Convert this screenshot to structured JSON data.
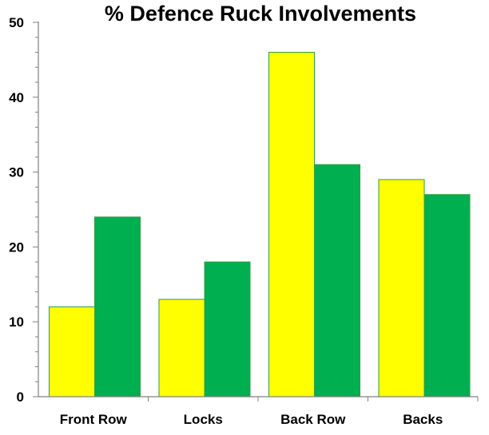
{
  "chart_data": {
    "type": "bar",
    "title": "% Defence Ruck Involvements",
    "xlabel": "",
    "ylabel": "",
    "categories": [
      "Front Row",
      "Locks",
      "Back Row",
      "Backs"
    ],
    "series": [
      {
        "values": [
          12,
          13,
          46,
          29
        ],
        "color": "#FFFF00"
      },
      {
        "values": [
          24,
          18,
          31,
          27
        ],
        "color": "#00B050"
      }
    ],
    "ylim": [
      0,
      50
    ],
    "yticks": [
      0,
      10,
      20,
      30,
      40,
      50
    ],
    "grid": false,
    "legend": "none",
    "bar_border_color": "#2E9E3E",
    "axis_color": "#808080"
  }
}
